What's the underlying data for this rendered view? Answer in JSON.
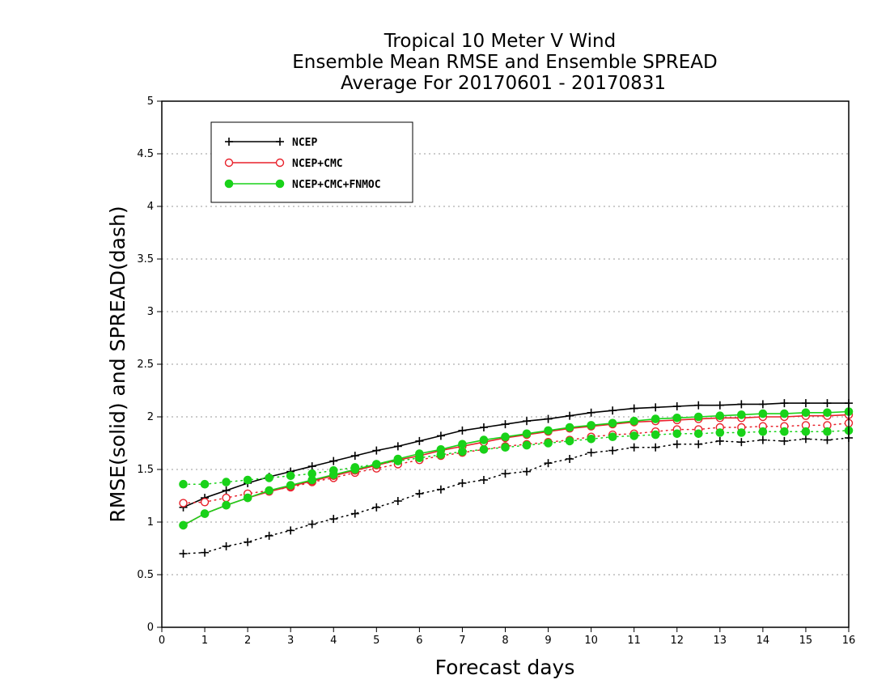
{
  "chart_data": {
    "type": "line",
    "title_lines": [
      "Tropical 10 Meter V Wind",
      "Ensemble Mean RMSE and Ensemble SPREAD",
      "Average For 20170601 - 20170831"
    ],
    "xlabel": "Forecast days",
    "ylabel": "RMSE(solid) and SPREAD(dash)",
    "xlim": [
      0,
      16
    ],
    "ylim": [
      0,
      5
    ],
    "xticks": [
      "0",
      "1",
      "2",
      "3",
      "4",
      "5",
      "6",
      "7",
      "8",
      "9",
      "10",
      "11",
      "12",
      "13",
      "14",
      "15",
      "16"
    ],
    "yticks": [
      "0",
      "0.5",
      "1",
      "1.5",
      "2",
      "2.5",
      "3",
      "3.5",
      "4",
      "4.5",
      "5"
    ],
    "grid": "horizontal dotted",
    "legend_position": "top-left",
    "x": [
      0.5,
      1,
      1.5,
      2,
      2.5,
      3,
      3.5,
      4,
      4.5,
      5,
      5.5,
      6,
      6.5,
      7,
      7.5,
      8,
      8.5,
      9,
      9.5,
      10,
      10.5,
      11,
      11.5,
      12,
      12.5,
      13,
      13.5,
      14,
      14.5,
      15,
      15.5,
      16
    ],
    "series": [
      {
        "name": "NCEP",
        "color": "#000000",
        "marker": "plus",
        "rmse": [
          1.14,
          1.23,
          1.3,
          1.37,
          1.43,
          1.48,
          1.53,
          1.58,
          1.63,
          1.68,
          1.72,
          1.77,
          1.82,
          1.87,
          1.9,
          1.93,
          1.96,
          1.98,
          2.01,
          2.04,
          2.06,
          2.08,
          2.09,
          2.1,
          2.11,
          2.11,
          2.12,
          2.12,
          2.13,
          2.13,
          2.13,
          2.13
        ],
        "spread": [
          0.7,
          0.71,
          0.77,
          0.81,
          0.87,
          0.92,
          0.98,
          1.03,
          1.08,
          1.14,
          1.2,
          1.27,
          1.31,
          1.37,
          1.4,
          1.46,
          1.48,
          1.56,
          1.6,
          1.66,
          1.68,
          1.71,
          1.71,
          1.74,
          1.74,
          1.77,
          1.76,
          1.78,
          1.77,
          1.79,
          1.78,
          1.8
        ]
      },
      {
        "name": "NCEP+CMC",
        "color": "#e8202a",
        "marker": "circle-open",
        "rmse": [
          0.97,
          1.08,
          1.16,
          1.23,
          1.29,
          1.34,
          1.39,
          1.44,
          1.49,
          1.54,
          1.59,
          1.63,
          1.68,
          1.72,
          1.76,
          1.8,
          1.83,
          1.86,
          1.89,
          1.91,
          1.93,
          1.95,
          1.96,
          1.97,
          1.98,
          1.99,
          1.99,
          2.0,
          2.0,
          2.01,
          2.01,
          2.02
        ],
        "spread": [
          1.18,
          1.19,
          1.23,
          1.27,
          1.3,
          1.33,
          1.38,
          1.42,
          1.47,
          1.51,
          1.55,
          1.59,
          1.63,
          1.66,
          1.69,
          1.72,
          1.74,
          1.76,
          1.78,
          1.81,
          1.83,
          1.84,
          1.86,
          1.88,
          1.88,
          1.9,
          1.9,
          1.91,
          1.91,
          1.92,
          1.92,
          1.94
        ]
      },
      {
        "name": "NCEP+CMC+FNMOC",
        "color": "#19d219",
        "marker": "circle-filled",
        "rmse": [
          0.97,
          1.08,
          1.16,
          1.23,
          1.3,
          1.35,
          1.4,
          1.45,
          1.5,
          1.55,
          1.6,
          1.65,
          1.69,
          1.74,
          1.78,
          1.81,
          1.84,
          1.87,
          1.9,
          1.92,
          1.94,
          1.96,
          1.98,
          1.99,
          2.0,
          2.01,
          2.02,
          2.03,
          2.03,
          2.04,
          2.04,
          2.05
        ],
        "spread": [
          1.36,
          1.36,
          1.38,
          1.4,
          1.42,
          1.44,
          1.46,
          1.49,
          1.52,
          1.55,
          1.58,
          1.61,
          1.64,
          1.67,
          1.69,
          1.71,
          1.73,
          1.75,
          1.77,
          1.79,
          1.81,
          1.82,
          1.83,
          1.84,
          1.84,
          1.85,
          1.85,
          1.86,
          1.86,
          1.86,
          1.86,
          1.87
        ]
      }
    ]
  }
}
